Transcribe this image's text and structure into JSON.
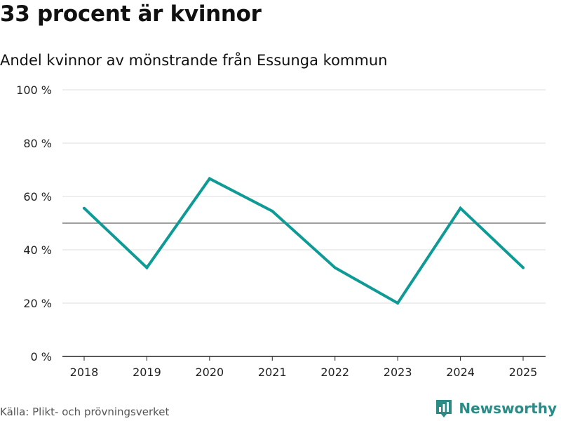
{
  "header": {
    "title": "33 procent är kvinnor",
    "subtitle": "Andel kvinnor av mönstrande från Essunga kommun"
  },
  "footer": {
    "source": "Källa: Plikt- och prövningsverket",
    "brand": "Newsworthy"
  },
  "colors": {
    "line": "#0e9a95",
    "reference": "#666666",
    "grid": "#dddddd",
    "brand": "#2b8c87"
  },
  "chart_data": {
    "type": "line",
    "x": [
      "2018",
      "2019",
      "2020",
      "2021",
      "2022",
      "2023",
      "2024",
      "2025"
    ],
    "series": [
      {
        "values": [
          55.6,
          33.3,
          66.7,
          54.5,
          33.3,
          20.0,
          55.6,
          33.3
        ]
      }
    ],
    "reference_line": 50,
    "ylim": [
      0,
      100
    ],
    "yticks": [
      0,
      20,
      40,
      60,
      80,
      100
    ],
    "ytick_labels": [
      "0 %",
      "20 %",
      "40 %",
      "60 %",
      "80 %",
      "100 %"
    ],
    "grid": true
  }
}
